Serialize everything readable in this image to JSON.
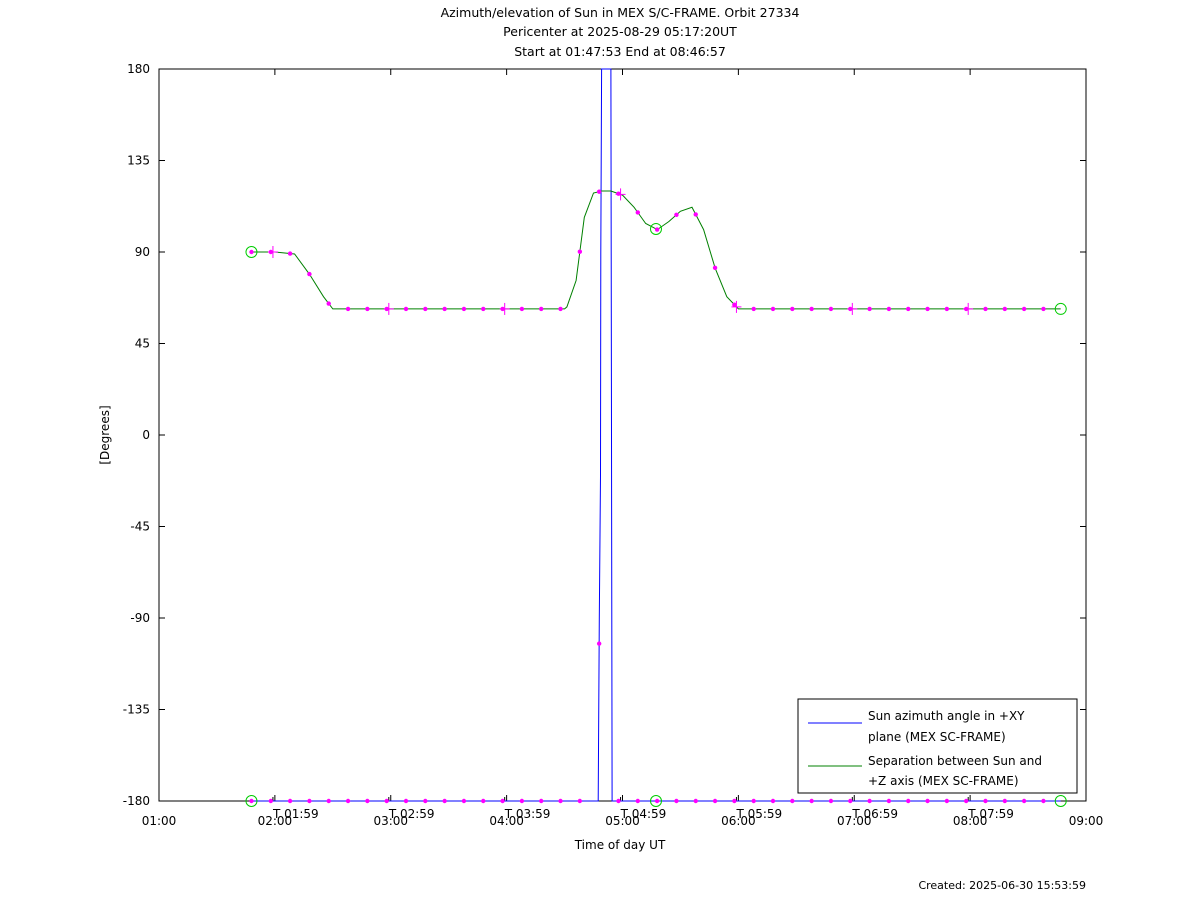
{
  "chart_data": {
    "type": "line",
    "title_lines": [
      "Azimuth/elevation of Sun in MEX S/C-FRAME.  Orbit 27334",
      "Pericenter at 2025-08-29 05:17:20UT",
      "Start at 01:47:53 End at 08:46:57"
    ],
    "xlabel": "Time of day UT",
    "ylabel": "[Degrees]",
    "xlim_hours": [
      1.0,
      9.0
    ],
    "ylim": [
      -180,
      180
    ],
    "x_ticks": [
      {
        "hour": 1,
        "label": "01:00"
      },
      {
        "hour": 2,
        "label": "02:00"
      },
      {
        "hour": 3,
        "label": "03:00"
      },
      {
        "hour": 4,
        "label": "04:00"
      },
      {
        "hour": 5,
        "label": "05:00"
      },
      {
        "hour": 6,
        "label": "06:00"
      },
      {
        "hour": 7,
        "label": "07:00"
      },
      {
        "hour": 8,
        "label": "08:00"
      },
      {
        "hour": 9,
        "label": "09:00"
      }
    ],
    "y_ticks": [
      {
        "value": 180,
        "label": "180"
      },
      {
        "value": 135,
        "label": "135"
      },
      {
        "value": 90,
        "label": "90"
      },
      {
        "value": 45,
        "label": "45"
      },
      {
        "value": 0,
        "label": "0"
      },
      {
        "value": -45,
        "label": "-45"
      },
      {
        "value": -90,
        "label": "-90"
      },
      {
        "value": -135,
        "label": "-135"
      },
      {
        "value": -180,
        "label": "-180"
      }
    ],
    "secondary_time_marks": [
      {
        "hour": 1.9833,
        "label": "T 01:59"
      },
      {
        "hour": 2.9833,
        "label": "T 02:59"
      },
      {
        "hour": 3.9833,
        "label": "T 03:59"
      },
      {
        "hour": 4.9833,
        "label": "T 04:59"
      },
      {
        "hour": 5.9833,
        "label": "T 05:59"
      },
      {
        "hour": 6.9833,
        "label": "T 06:59"
      },
      {
        "hour": 7.9833,
        "label": "T 07:59"
      }
    ],
    "series": [
      {
        "name": "Sun azimuth angle in +XY plane (MEX SC-FRAME)",
        "legend_lines": [
          "Sun azimuth angle in +XY",
          "plane (MEX SC-FRAME)"
        ],
        "color": "#0000ff",
        "x": [
          1.798,
          4.79,
          4.8,
          4.81,
          4.813,
          4.82,
          4.8233,
          4.83,
          4.84,
          4.87,
          4.9,
          4.905,
          4.91,
          4.915,
          4.92,
          4.95,
          8.782
        ],
        "y": [
          -180,
          -180,
          -90,
          -20,
          90,
          180,
          180,
          180,
          180,
          180,
          180,
          0,
          -180,
          -180,
          -180,
          -180,
          -180
        ]
      },
      {
        "name": "Separation between Sun and +Z axis (MEX SC-FRAME)",
        "legend_lines": [
          "Separation between Sun and",
          "+Z axis (MEX SC-FRAME)"
        ],
        "color": "#008000",
        "x": [
          1.798,
          2.0,
          2.17,
          2.3,
          2.42,
          2.5,
          2.6,
          3.0,
          3.5,
          4.0,
          4.5,
          4.52,
          4.6,
          4.67,
          4.75,
          4.8233,
          4.9,
          5.0,
          5.1,
          5.2,
          5.3,
          5.4,
          5.5,
          5.6,
          5.7,
          5.8,
          5.9,
          6.0,
          6.05,
          6.15,
          7.0,
          8.0,
          8.782
        ],
        "y": [
          90,
          90,
          89,
          79,
          68,
          62,
          62,
          62,
          62,
          62,
          62,
          63,
          76,
          107,
          119,
          120,
          120,
          118,
          112,
          104,
          101,
          105,
          110,
          112,
          101,
          82,
          68,
          62,
          62,
          62,
          62,
          62,
          62
        ]
      }
    ],
    "sample_marks_start_hour": 1.798,
    "sample_marks_step_hours": 0.1667,
    "start_end_hours": [
      1.798,
      8.782
    ],
    "pericenter_hour": 5.289,
    "footer": "Created: 2025-06-30 15:53:59"
  }
}
